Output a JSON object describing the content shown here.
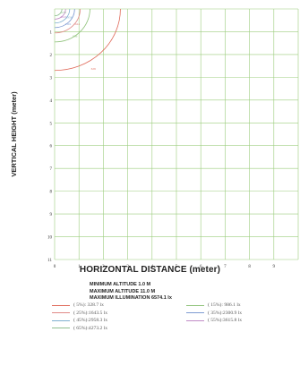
{
  "chart_data": {
    "type": "line",
    "title": "",
    "xlabel": "HORIZONTAL DISTANCE (meter)",
    "ylabel": "VERTICAL HEIGHT (meter)",
    "xlim": [
      0,
      10
    ],
    "ylim": [
      0,
      11
    ],
    "y_inverted": true,
    "grid": true,
    "xticks": [
      "0",
      "1",
      "2",
      "3",
      "4",
      "5",
      "6",
      "7",
      "8",
      "9"
    ],
    "yticks": [
      "1",
      "2",
      "3",
      "4",
      "5",
      "6",
      "7",
      "8",
      "9",
      "10",
      "11"
    ],
    "series": [
      {
        "name": "( 5%): 328.7 lx",
        "color": "#e06a5a",
        "radius": 2.7,
        "label": "329"
      },
      {
        "name": "( 15%): 986.1 lx",
        "color": "#8fc27a",
        "radius": 1.45,
        "label": "986"
      },
      {
        "name": "( 25%):1643.5 lx",
        "color": "#e08a86",
        "radius": 1.05,
        "label": "1644"
      },
      {
        "name": "( 35%):2300.9 lx",
        "color": "#7e9bd2",
        "radius": 0.82,
        "label": "2301"
      },
      {
        "name": "( 45%):2958.3 lx",
        "color": "#7fb0cf",
        "radius": 0.62,
        "label": "2958"
      },
      {
        "name": "( 55%):3615.8 lx",
        "color": "#c18bc6",
        "radius": 0.45,
        "label": "3616"
      },
      {
        "name": "( 65%):4273.2 lx",
        "color": "#8fbf8f",
        "radius": 0.3,
        "label": "4273"
      }
    ],
    "legend_placement": "bottom"
  },
  "info": {
    "min_altitude": "MINIMUM ALTITUDE 1.0 M",
    "max_altitude": "MAXIMUM ALTITUDE 11.0 M",
    "max_illumination": "MAXIMUM ILLUMINATION 6574.1 lx"
  }
}
